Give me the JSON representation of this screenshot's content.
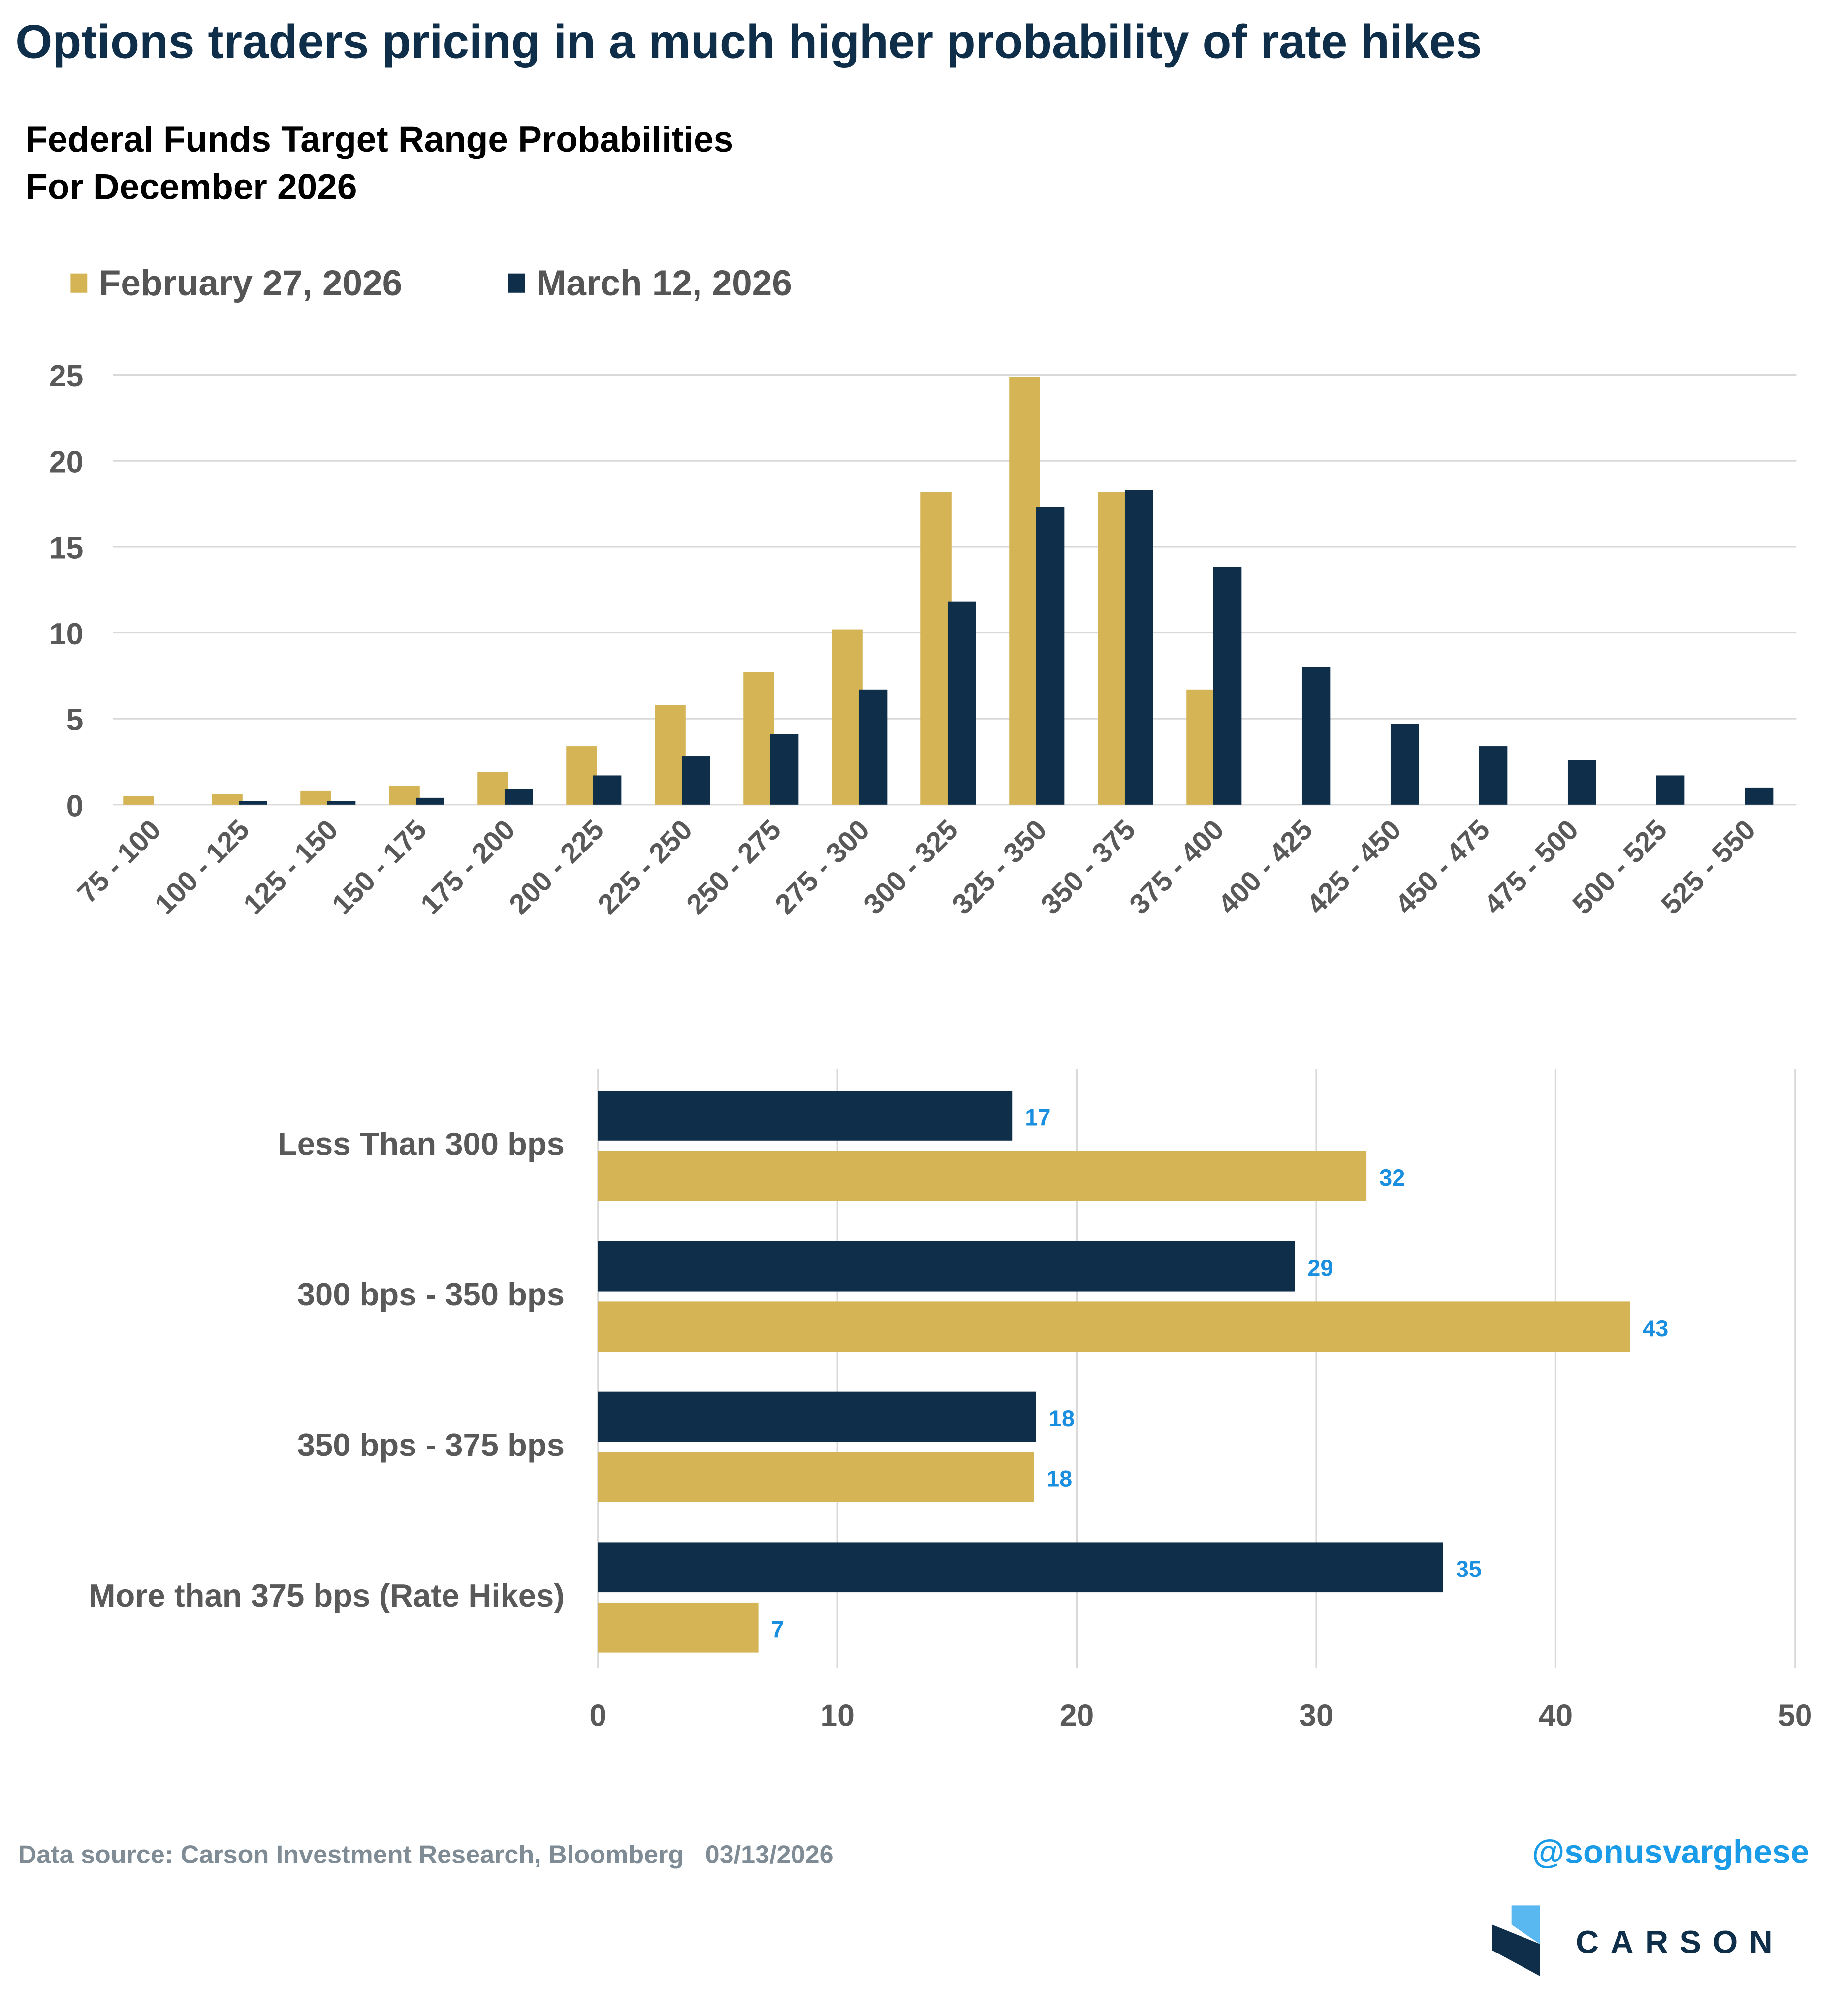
{
  "title": "Options traders pricing in a much higher probability of rate hikes",
  "subtitle_line1": "Federal Funds Target Range Probabilities",
  "subtitle_line2": "For December 2026",
  "colors": {
    "feb": "#d4b455",
    "mar": "#0e2e4a",
    "label": "#1a8fe0",
    "title": "#0e2e4a"
  },
  "chart_data": [
    {
      "type": "bar",
      "title": "Federal Funds Target Range Probabilities For December 2026",
      "legend": "top-left",
      "ylim": [
        0,
        25
      ],
      "yticks": [
        "0",
        "5",
        "10",
        "15",
        "20",
        "25"
      ],
      "categories": [
        "75 - 100",
        "100 - 125",
        "125 - 150",
        "150 - 175",
        "175 - 200",
        "200 - 225",
        "225 - 250",
        "250 - 275",
        "275 - 300",
        "300 - 325",
        "325 - 350",
        "350 - 375",
        "375 - 400",
        "400 - 425",
        "425 - 450",
        "450 - 475",
        "475 - 500",
        "500 - 525",
        "525 - 550"
      ],
      "series": [
        {
          "name": "February 27, 2026",
          "values": [
            0.5,
            0.6,
            0.8,
            1.1,
            1.9,
            3.4,
            5.8,
            7.7,
            10.2,
            18.2,
            24.9,
            18.2,
            6.7,
            0,
            0,
            0,
            0,
            0,
            0
          ]
        },
        {
          "name": "March 12, 2026",
          "values": [
            0,
            0.2,
            0.2,
            0.4,
            0.9,
            1.7,
            2.8,
            4.1,
            6.7,
            11.8,
            17.3,
            18.3,
            13.8,
            8.0,
            4.7,
            3.4,
            2.6,
            1.7,
            1.0
          ]
        }
      ]
    },
    {
      "type": "bar",
      "orientation": "horizontal",
      "xlim": [
        0,
        50
      ],
      "xticks": [
        "0",
        "10",
        "20",
        "30",
        "40",
        "50"
      ],
      "categories": [
        "Less Than 300 bps",
        "300 bps - 350 bps",
        "350 bps - 375 bps",
        "More than 375 bps (Rate Hikes)"
      ],
      "series": [
        {
          "name": "March 12, 2026",
          "values": [
            17.3,
            29.1,
            18.3,
            35.3
          ],
          "labels": [
            "17",
            "29",
            "18",
            "35"
          ]
        },
        {
          "name": "February 27, 2026",
          "values": [
            32.1,
            43.1,
            18.2,
            6.7
          ],
          "labels": [
            "32",
            "43",
            "18",
            "7"
          ]
        }
      ]
    }
  ],
  "footer": {
    "source": "Data source: Carson Investment Research, Bloomberg   03/13/2026",
    "handle": "@sonusvarghese",
    "logo_text": "CARSON"
  }
}
